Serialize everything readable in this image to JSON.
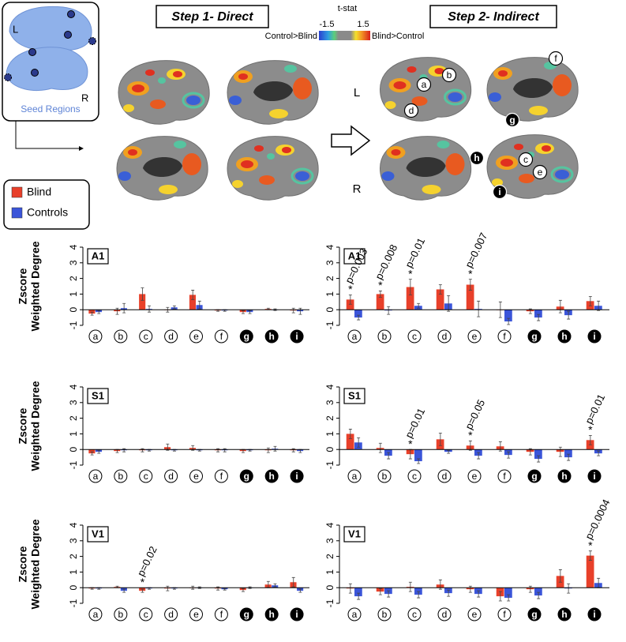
{
  "figure": {
    "step1_title": "Step 1- Direct",
    "step2_title": "Step 2- Indirect",
    "colorbar": {
      "title": "t-stat",
      "low": "-1.5",
      "high": "1.5",
      "left_label": "Control>Blind",
      "right_label": "Blind>Control"
    },
    "seed": {
      "left": "L",
      "right": "R",
      "label": "Seed Regions"
    },
    "hemisphere_labels": [
      "L",
      "R"
    ],
    "brain_markers": [
      "a",
      "b",
      "c",
      "d",
      "e",
      "f",
      "g",
      "h",
      "i"
    ]
  },
  "chart_data": [
    {
      "type": "bar",
      "title": "A1",
      "y_label": [
        "Zscore",
        "Weighted Degree"
      ],
      "categories": [
        "a",
        "b",
        "c",
        "d",
        "e",
        "f",
        "g",
        "h",
        "i"
      ],
      "category_style": [
        "open",
        "open",
        "open",
        "open",
        "open",
        "open",
        "filled",
        "filled",
        "filled"
      ],
      "ylim": [
        -1,
        4
      ],
      "yticks": [
        -1,
        0,
        1,
        2,
        3,
        4
      ],
      "series": [
        {
          "name": "Blind",
          "color": "#e8402a",
          "values": [
            -0.25,
            -0.1,
            1.0,
            0,
            0.95,
            -0.05,
            -0.15,
            0.05,
            -0.05
          ],
          "errors": [
            0.1,
            0.2,
            0.4,
            0.15,
            0.3,
            0.05,
            0.1,
            0.05,
            0.15
          ]
        },
        {
          "name": "Controls",
          "color": "#3b55d9",
          "values": [
            -0.15,
            0.1,
            0.05,
            0.15,
            0.3,
            -0.05,
            -0.15,
            0,
            -0.1
          ],
          "errors": [
            0.1,
            0.3,
            0.2,
            0.1,
            0.25,
            0.05,
            0.1,
            0.05,
            0.2
          ]
        }
      ],
      "annotations": []
    },
    {
      "type": "bar",
      "title": "A1",
      "categories": [
        "a",
        "b",
        "c",
        "d",
        "e",
        "f",
        "g",
        "h",
        "i"
      ],
      "category_style": [
        "open",
        "open",
        "open",
        "open",
        "open",
        "open",
        "filled",
        "filled",
        "filled"
      ],
      "ylim": [
        -1,
        4
      ],
      "yticks": [
        -1,
        0,
        1,
        2,
        3,
        4
      ],
      "series": [
        {
          "name": "Blind",
          "color": "#e8402a",
          "values": [
            0.65,
            1.0,
            1.45,
            1.3,
            1.6,
            0,
            -0.1,
            0.2,
            0.55
          ],
          "errors": [
            0.3,
            0.2,
            0.5,
            0.3,
            0.35,
            0.5,
            0.15,
            0.4,
            0.3
          ]
        },
        {
          "name": "Controls",
          "color": "#3b55d9",
          "values": [
            -0.5,
            -0.05,
            0.25,
            0.4,
            0.05,
            -0.75,
            -0.5,
            -0.35,
            0.25
          ],
          "errors": [
            0.15,
            0.25,
            0.15,
            0.5,
            0.5,
            0.2,
            0.2,
            0.25,
            0.3
          ]
        }
      ],
      "annotations": [
        {
          "category": "a",
          "label": "p=0.003",
          "marker": "*"
        },
        {
          "category": "b",
          "label": "p=0.008",
          "marker": "*"
        },
        {
          "category": "c",
          "label": "p=0.01",
          "marker": "*"
        },
        {
          "category": "e",
          "label": "p=0.007",
          "marker": "*"
        }
      ]
    },
    {
      "type": "bar",
      "title": "S1",
      "y_label": [
        "Zscore",
        "Weighted Degree"
      ],
      "categories": [
        "a",
        "b",
        "c",
        "d",
        "e",
        "f",
        "g",
        "h",
        "i"
      ],
      "category_style": [
        "open",
        "open",
        "open",
        "open",
        "open",
        "open",
        "filled",
        "filled",
        "filled"
      ],
      "ylim": [
        -1,
        4
      ],
      "yticks": [
        -1,
        0,
        1,
        2,
        3,
        4
      ],
      "series": [
        {
          "name": "Blind",
          "color": "#e8402a",
          "values": [
            -0.25,
            -0.1,
            -0.05,
            0.15,
            0.1,
            -0.05,
            -0.1,
            -0.05,
            -0.05
          ],
          "errors": [
            0.1,
            0.1,
            0.1,
            0.2,
            0.15,
            0.1,
            0.1,
            0.15,
            0.1
          ]
        },
        {
          "name": "Controls",
          "color": "#3b55d9",
          "values": [
            -0.15,
            -0.05,
            -0.05,
            -0.05,
            -0.05,
            -0.05,
            -0.05,
            0.05,
            -0.1
          ],
          "errors": [
            0.1,
            0.1,
            0.05,
            0.05,
            0.05,
            0.1,
            0.05,
            0.15,
            0.1
          ]
        }
      ],
      "annotations": []
    },
    {
      "type": "bar",
      "title": "S1",
      "categories": [
        "a",
        "b",
        "c",
        "d",
        "e",
        "f",
        "g",
        "h",
        "i"
      ],
      "category_style": [
        "open",
        "open",
        "open",
        "open",
        "open",
        "open",
        "filled",
        "filled",
        "filled"
      ],
      "ylim": [
        -1,
        4
      ],
      "yticks": [
        -1,
        0,
        1,
        2,
        3,
        4
      ],
      "series": [
        {
          "name": "Blind",
          "color": "#e8402a",
          "values": [
            1.0,
            0.1,
            -0.3,
            0.65,
            0.25,
            0.2,
            -0.15,
            -0.15,
            0.6
          ],
          "errors": [
            0.3,
            0.3,
            0.3,
            0.4,
            0.3,
            0.3,
            0.2,
            0.3,
            0.3
          ]
        },
        {
          "name": "Controls",
          "color": "#3b55d9",
          "values": [
            0.45,
            -0.4,
            -0.75,
            -0.15,
            -0.4,
            -0.35,
            -0.6,
            -0.5,
            -0.25
          ],
          "errors": [
            0.3,
            0.2,
            0.15,
            0.1,
            0.2,
            0.2,
            0.2,
            0.2,
            0.15
          ]
        }
      ],
      "annotations": [
        {
          "category": "c",
          "label": "p=0.01",
          "marker": "*"
        },
        {
          "category": "e",
          "label": "p=0.05",
          "marker": "*"
        },
        {
          "category": "i",
          "label": "p=0.01",
          "marker": "*"
        }
      ]
    },
    {
      "type": "bar",
      "title": "V1",
      "y_label": [
        "Zscore",
        "Weighted Degree"
      ],
      "categories": [
        "a",
        "b",
        "c",
        "d",
        "e",
        "f",
        "g",
        "h",
        "i"
      ],
      "category_style": [
        "open",
        "open",
        "open",
        "open",
        "open",
        "open",
        "filled",
        "filled",
        "filled"
      ],
      "ylim": [
        -1,
        4
      ],
      "yticks": [
        -1,
        0,
        1,
        2,
        3,
        4
      ],
      "series": [
        {
          "name": "Blind",
          "color": "#e8402a",
          "values": [
            -0.05,
            0.05,
            -0.2,
            -0.05,
            0,
            -0.05,
            -0.15,
            0.2,
            0.35
          ],
          "errors": [
            0.05,
            0.05,
            0.1,
            0.15,
            0.1,
            0.1,
            0.1,
            0.2,
            0.3
          ]
        },
        {
          "name": "Controls",
          "color": "#3b55d9",
          "values": [
            -0.05,
            -0.2,
            -0.05,
            -0.05,
            0,
            -0.1,
            0,
            0.15,
            -0.2
          ],
          "errors": [
            0.05,
            0.1,
            0.05,
            0.05,
            0.05,
            0.05,
            0.05,
            0.1,
            0.1
          ]
        }
      ],
      "annotations": [
        {
          "category": "c",
          "label": "p=0.02",
          "marker": "*"
        }
      ]
    },
    {
      "type": "bar",
      "title": "V1",
      "categories": [
        "a",
        "b",
        "c",
        "d",
        "e",
        "f",
        "g",
        "h",
        "i"
      ],
      "category_style": [
        "open",
        "open",
        "open",
        "open",
        "open",
        "open",
        "filled",
        "filled",
        "filled"
      ],
      "ylim": [
        -1,
        4
      ],
      "yticks": [
        -1,
        0,
        1,
        2,
        3,
        4
      ],
      "series": [
        {
          "name": "Blind",
          "color": "#e8402a",
          "values": [
            -0.05,
            -0.25,
            0.05,
            0.2,
            -0.1,
            -0.55,
            -0.1,
            0.75,
            2.05
          ],
          "errors": [
            0.3,
            0.2,
            0.3,
            0.3,
            0.2,
            0.3,
            0.2,
            0.4,
            0.3
          ]
        },
        {
          "name": "Controls",
          "color": "#3b55d9",
          "values": [
            -0.55,
            -0.4,
            -0.45,
            -0.35,
            -0.4,
            -0.65,
            -0.5,
            -0.05,
            0.3
          ],
          "errors": [
            0.2,
            0.2,
            0.2,
            0.2,
            0.2,
            0.2,
            0.2,
            0.3,
            0.3
          ]
        }
      ],
      "annotations": [
        {
          "category": "i",
          "label": "p=0.0004",
          "marker": "*"
        }
      ]
    }
  ]
}
